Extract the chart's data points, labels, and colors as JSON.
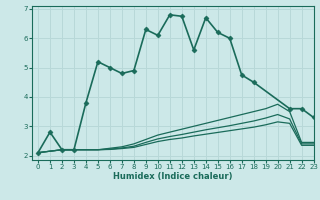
{
  "xlabel": "Humidex (Indice chaleur)",
  "bg_color": "#cce8e8",
  "line_color": "#1a6b5a",
  "grid_color": "#b8d8d8",
  "xlim": [
    -0.5,
    23
  ],
  "ylim": [
    1.85,
    7.1
  ],
  "yticks": [
    2,
    3,
    4,
    5,
    6,
    7
  ],
  "xticks": [
    0,
    1,
    2,
    3,
    4,
    5,
    6,
    7,
    8,
    9,
    10,
    11,
    12,
    13,
    14,
    15,
    16,
    17,
    18,
    19,
    20,
    21,
    22,
    23
  ],
  "series": [
    {
      "x": [
        0,
        1,
        2,
        3,
        4,
        5,
        6,
        7,
        8,
        9,
        10,
        11,
        12,
        13,
        14,
        15,
        16,
        17,
        18,
        21,
        22,
        23
      ],
      "y": [
        2.1,
        2.8,
        2.2,
        2.2,
        3.8,
        5.2,
        5.0,
        4.8,
        4.9,
        6.3,
        6.1,
        6.8,
        6.75,
        5.6,
        6.7,
        6.2,
        6.0,
        4.75,
        4.5,
        3.6,
        3.6,
        3.3
      ],
      "marker": "D",
      "markersize": 2.5,
      "linewidth": 1.2
    },
    {
      "x": [
        0,
        2,
        3,
        4,
        5,
        6,
        7,
        8,
        9,
        10,
        11,
        12,
        13,
        14,
        15,
        16,
        17,
        18,
        19,
        20,
        21,
        22,
        23
      ],
      "y": [
        2.1,
        2.2,
        2.2,
        2.2,
        2.2,
        2.25,
        2.3,
        2.4,
        2.55,
        2.7,
        2.8,
        2.9,
        3.0,
        3.1,
        3.2,
        3.3,
        3.4,
        3.5,
        3.6,
        3.75,
        3.5,
        2.45,
        2.45
      ],
      "marker": null,
      "markersize": 0,
      "linewidth": 0.9
    },
    {
      "x": [
        0,
        2,
        3,
        4,
        5,
        6,
        7,
        8,
        9,
        10,
        11,
        12,
        13,
        14,
        15,
        16,
        17,
        18,
        19,
        20,
        21,
        22,
        23
      ],
      "y": [
        2.1,
        2.2,
        2.2,
        2.2,
        2.2,
        2.22,
        2.26,
        2.32,
        2.45,
        2.57,
        2.65,
        2.72,
        2.8,
        2.88,
        2.95,
        3.02,
        3.1,
        3.18,
        3.28,
        3.4,
        3.25,
        2.4,
        2.4
      ],
      "marker": null,
      "markersize": 0,
      "linewidth": 0.9
    },
    {
      "x": [
        0,
        2,
        3,
        4,
        5,
        6,
        7,
        8,
        9,
        10,
        11,
        12,
        13,
        14,
        15,
        16,
        17,
        18,
        19,
        20,
        21,
        22,
        23
      ],
      "y": [
        2.1,
        2.2,
        2.2,
        2.2,
        2.2,
        2.21,
        2.24,
        2.28,
        2.38,
        2.48,
        2.55,
        2.6,
        2.67,
        2.73,
        2.79,
        2.85,
        2.91,
        2.97,
        3.05,
        3.15,
        3.1,
        2.35,
        2.35
      ],
      "marker": null,
      "markersize": 0,
      "linewidth": 0.9
    }
  ]
}
